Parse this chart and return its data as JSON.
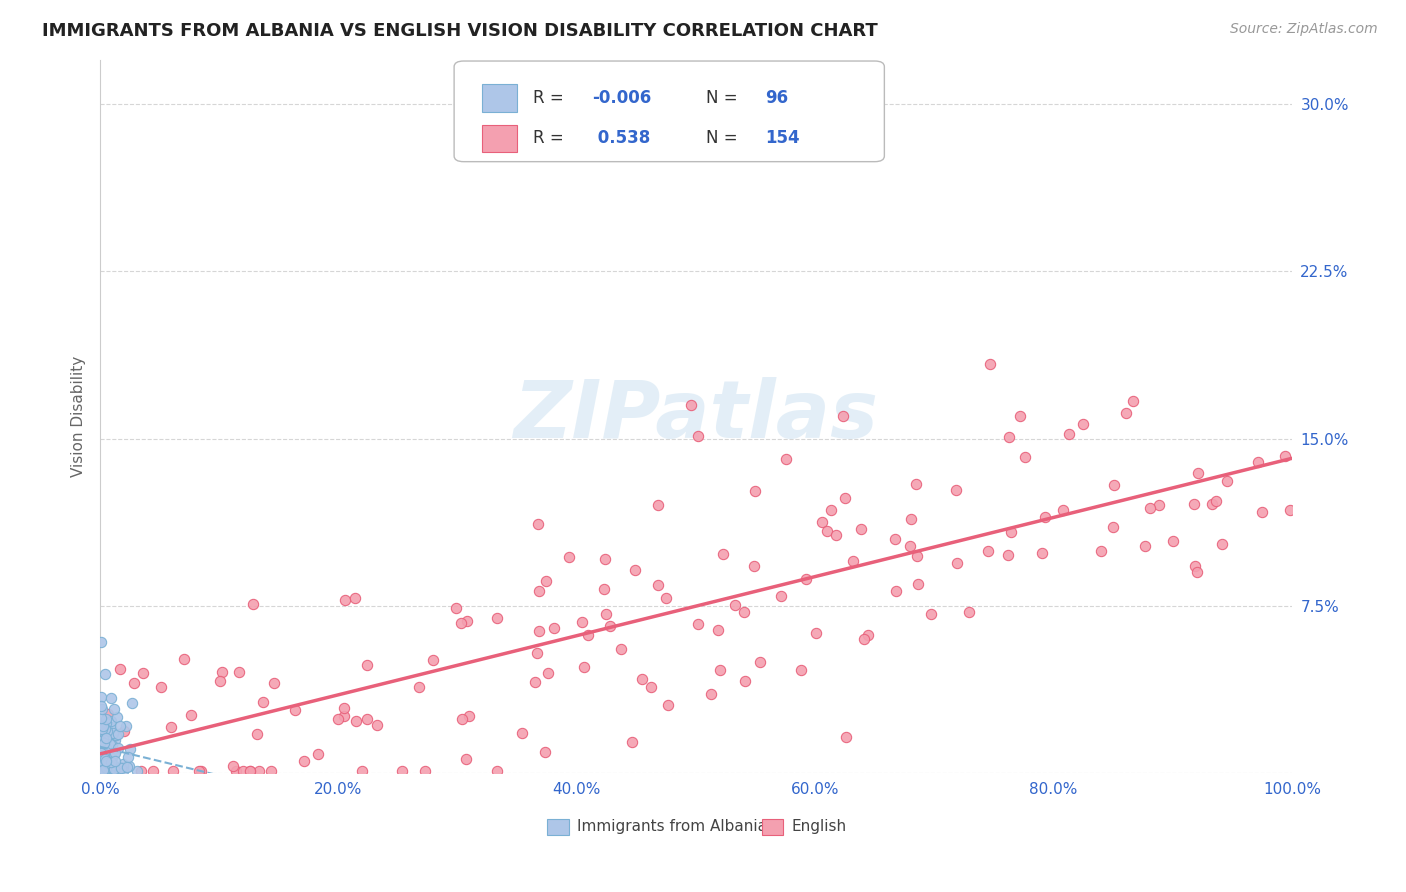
{
  "title": "IMMIGRANTS FROM ALBANIA VS ENGLISH VISION DISABILITY CORRELATION CHART",
  "source_text": "Source: ZipAtlas.com",
  "ylabel": "Vision Disability",
  "legend_label_1": "Immigrants from Albania",
  "legend_label_2": "English",
  "r1": "-0.006",
  "n1": "96",
  "r2": "0.538",
  "n2": "154",
  "color1": "#aec6e8",
  "color2": "#f4a0b0",
  "line1_color": "#7ab0d4",
  "line2_color": "#e8607a",
  "bg_color": "#ffffff",
  "title_color": "#222222",
  "r_color": "#3366cc",
  "tick_color": "#3366cc",
  "xlim": [
    0.0,
    1.0
  ],
  "ylim": [
    0.0,
    0.32
  ],
  "x_ticks": [
    0.0,
    0.2,
    0.4,
    0.6,
    0.8,
    1.0
  ],
  "x_tick_labels": [
    "0.0%",
    "20.0%",
    "40.0%",
    "60.0%",
    "80.0%",
    "100.0%"
  ],
  "y_ticks": [
    0.0,
    0.075,
    0.15,
    0.225,
    0.3
  ],
  "y_tick_labels": [
    "",
    "7.5%",
    "15.0%",
    "22.5%",
    "30.0%"
  ],
  "grid_color": "#cccccc",
  "watermark_text": "ZIPatlas"
}
